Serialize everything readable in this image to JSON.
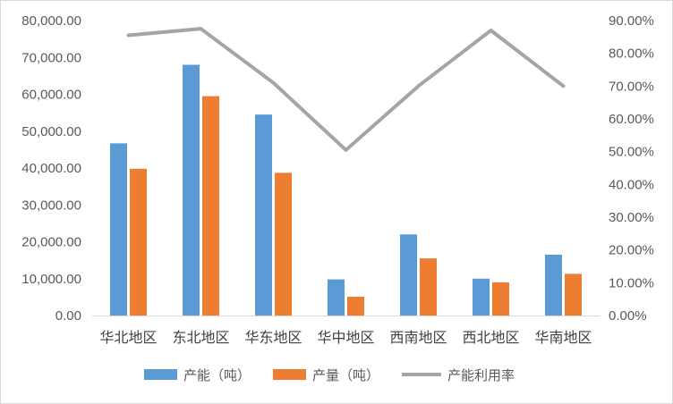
{
  "chart_data": {
    "type": "bar",
    "categories": [
      "华北地区",
      "东北地区",
      "华东地区",
      "华中地区",
      "西南地区",
      "西北地区",
      "华南地区"
    ],
    "series": [
      {
        "name": "产能（吨）",
        "kind": "bar",
        "axis": "left",
        "color": "#5B9BD5",
        "values": [
          46700,
          68000,
          54500,
          9800,
          22000,
          10000,
          16500
        ]
      },
      {
        "name": "产量（吨）",
        "kind": "bar",
        "axis": "left",
        "color": "#ED7D31",
        "values": [
          39800,
          59500,
          38700,
          5100,
          15500,
          9000,
          11300
        ]
      },
      {
        "name": "产能利用率",
        "kind": "line",
        "axis": "right",
        "color": "#A5A5A5",
        "values": [
          0.855,
          0.875,
          0.71,
          0.505,
          0.7,
          0.87,
          0.7
        ]
      }
    ],
    "y_left": {
      "min": 0,
      "max": 80000,
      "step": 10000,
      "tick_labels": [
        "0.00",
        "10,000.00",
        "20,000.00",
        "30,000.00",
        "40,000.00",
        "50,000.00",
        "60,000.00",
        "70,000.00",
        "80,000.00"
      ]
    },
    "y_right": {
      "min": 0,
      "max": 0.9,
      "step": 0.1,
      "tick_labels": [
        "0.00%",
        "10.00%",
        "20.00%",
        "30.00%",
        "40.00%",
        "50.00%",
        "60.00%",
        "70.00%",
        "80.00%",
        "90.00%"
      ]
    },
    "grid": false,
    "legend_position": "bottom"
  }
}
